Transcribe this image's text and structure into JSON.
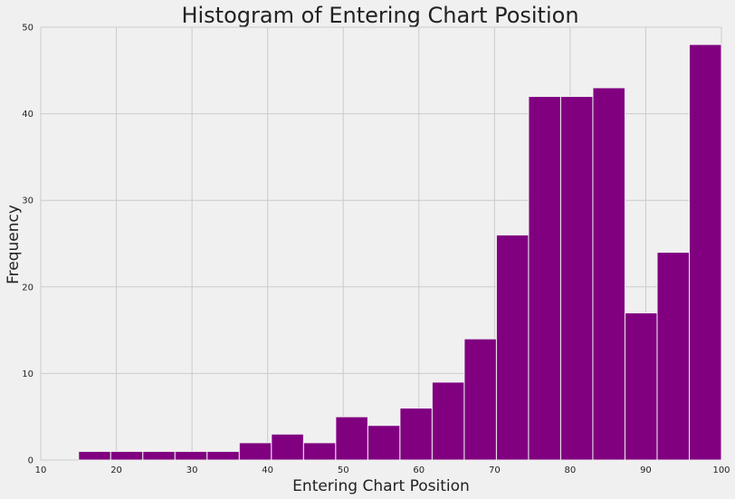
{
  "chart_data": {
    "type": "bar",
    "subtype": "histogram",
    "title": "Histogram of Entering Chart Position",
    "xlabel": "Entering Chart Position",
    "ylabel": "Frequency",
    "xlim": [
      10,
      100
    ],
    "ylim": [
      0,
      50
    ],
    "xticks": [
      10,
      20,
      30,
      40,
      50,
      60,
      70,
      80,
      90,
      100
    ],
    "yticks": [
      0,
      10,
      20,
      30,
      40,
      50
    ],
    "grid": true,
    "bar_color": "#800080",
    "background_color": "#f0f0f0",
    "bin_edges": [
      15,
      19.25,
      23.5,
      27.75,
      32,
      36.25,
      40.5,
      44.75,
      49,
      53.25,
      57.5,
      61.75,
      66,
      70.25,
      74.5,
      78.75,
      83,
      87.25,
      91.5,
      95.75,
      100
    ],
    "values": [
      1,
      1,
      1,
      1,
      1,
      2,
      3,
      2,
      5,
      4,
      6,
      9,
      14,
      26,
      42,
      42,
      43,
      17,
      24,
      48
    ]
  }
}
